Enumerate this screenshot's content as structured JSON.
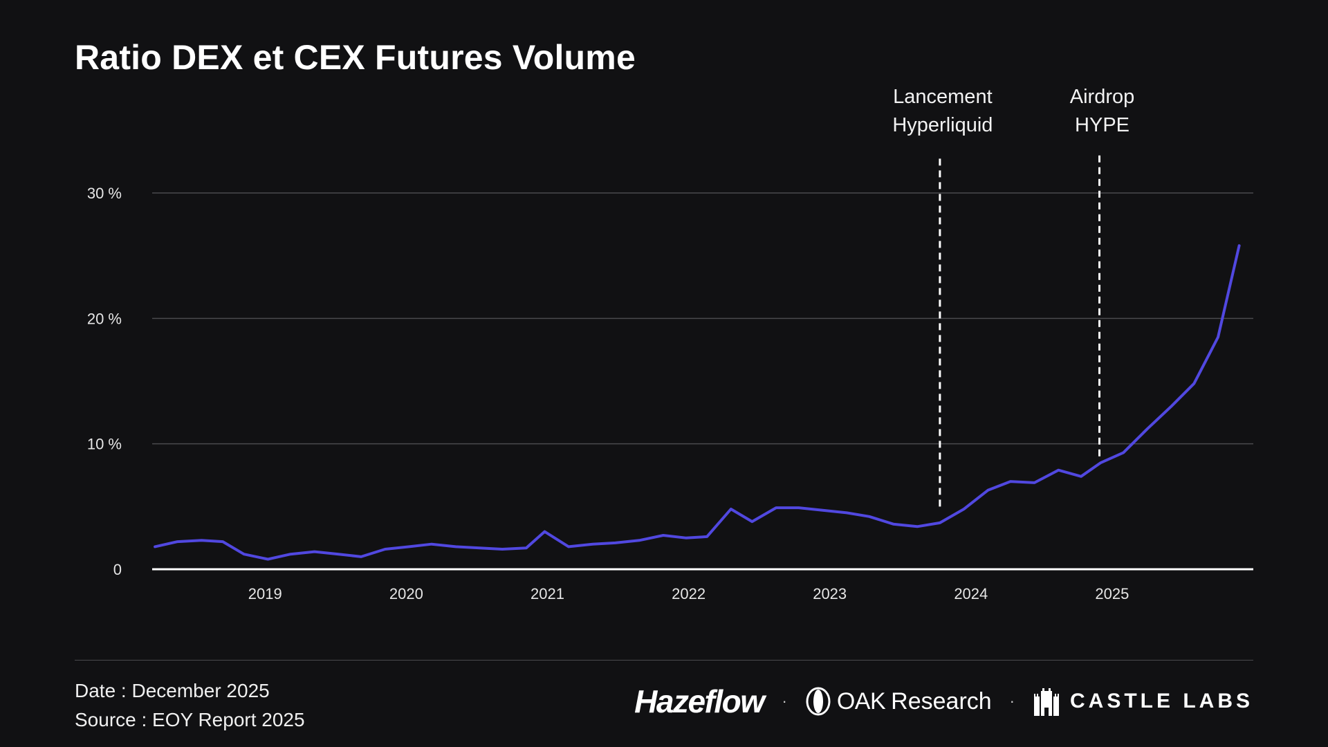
{
  "title": "Ratio DEX et CEX Futures Volume",
  "chart_data": {
    "type": "line",
    "title": "Ratio DEX et CEX Futures Volume",
    "xlabel": "",
    "ylabel": "",
    "ylim": [
      0,
      30
    ],
    "y_ticks": [
      {
        "value": 0,
        "label": "0"
      },
      {
        "value": 10,
        "label": "10 %"
      },
      {
        "value": 20,
        "label": "20 %"
      },
      {
        "value": 30,
        "label": "30 %"
      }
    ],
    "x_ticks": [
      {
        "value": 2019,
        "label": "2019"
      },
      {
        "value": 2020,
        "label": "2020"
      },
      {
        "value": 2021,
        "label": "2021"
      },
      {
        "value": 2022,
        "label": "2022"
      },
      {
        "value": 2023,
        "label": "2023"
      },
      {
        "value": 2024,
        "label": "2024"
      },
      {
        "value": 2025,
        "label": "2025"
      }
    ],
    "xlim": [
      2018.2,
      2026.0
    ],
    "grid": true,
    "line_color": "#5148e0",
    "series": [
      {
        "name": "",
        "points": [
          [
            2018.22,
            1.8
          ],
          [
            2018.38,
            2.2
          ],
          [
            2018.55,
            2.3
          ],
          [
            2018.7,
            2.2
          ],
          [
            2018.85,
            1.2
          ],
          [
            2019.02,
            0.8
          ],
          [
            2019.18,
            1.2
          ],
          [
            2019.35,
            1.4
          ],
          [
            2019.52,
            1.2
          ],
          [
            2019.68,
            1.0
          ],
          [
            2019.85,
            1.6
          ],
          [
            2020.02,
            1.8
          ],
          [
            2020.18,
            2.0
          ],
          [
            2020.35,
            1.8
          ],
          [
            2020.52,
            1.7
          ],
          [
            2020.68,
            1.6
          ],
          [
            2020.85,
            1.7
          ],
          [
            2020.98,
            3.0
          ],
          [
            2021.15,
            1.8
          ],
          [
            2021.32,
            2.0
          ],
          [
            2021.48,
            2.1
          ],
          [
            2021.65,
            2.3
          ],
          [
            2021.82,
            2.7
          ],
          [
            2021.98,
            2.5
          ],
          [
            2022.13,
            2.6
          ],
          [
            2022.3,
            4.8
          ],
          [
            2022.45,
            3.8
          ],
          [
            2022.62,
            4.9
          ],
          [
            2022.78,
            4.9
          ],
          [
            2022.95,
            4.7
          ],
          [
            2023.12,
            4.5
          ],
          [
            2023.28,
            4.2
          ],
          [
            2023.45,
            3.6
          ],
          [
            2023.62,
            3.4
          ],
          [
            2023.78,
            3.7
          ],
          [
            2023.95,
            4.8
          ],
          [
            2024.12,
            6.3
          ],
          [
            2024.28,
            7.0
          ],
          [
            2024.45,
            6.9
          ],
          [
            2024.62,
            7.9
          ],
          [
            2024.78,
            7.4
          ],
          [
            2024.92,
            8.5
          ],
          [
            2025.08,
            9.3
          ],
          [
            2025.25,
            11.2
          ],
          [
            2025.42,
            13.0
          ],
          [
            2025.58,
            14.8
          ],
          [
            2025.75,
            18.5
          ],
          [
            2025.9,
            25.8
          ]
        ]
      }
    ],
    "annotations": [
      {
        "x": 2023.78,
        "lines": [
          "Lancement",
          "Hyperliquid"
        ],
        "y_from": 5.0,
        "y_to": 33.0
      },
      {
        "x": 2024.91,
        "lines": [
          "Airdrop",
          "HYPE"
        ],
        "y_from": 9.0,
        "y_to": 33.0
      }
    ]
  },
  "footer": {
    "date": "Date : December 2025",
    "source": "Source : EOY Report 2025"
  },
  "logos": {
    "hazeflow": "Hazeflow",
    "oak_a": "OAK",
    "oak_b": "Research",
    "castle": "CASTLE LABS",
    "separator": "·"
  }
}
